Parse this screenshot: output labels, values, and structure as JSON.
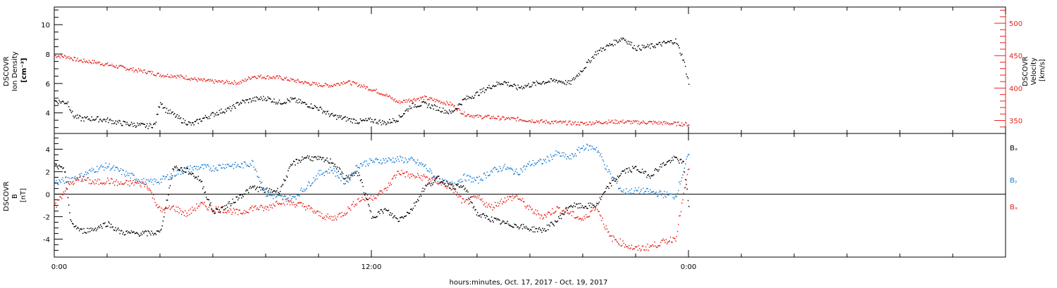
{
  "xlabel": "hours:minutes, Oct. 17, 2017 - Oct. 19, 2017",
  "x_tick_labels": [
    "0:00",
    "12:00",
    "0:00"
  ],
  "chart_data": [
    {
      "type": "scatter",
      "panel": "top",
      "title": "",
      "xlabel": "hours:minutes, Oct. 17, 2017 - Oct. 19, 2017",
      "xlim_hours": [
        0,
        36
      ],
      "x_tick_labels": [
        "0:00",
        "12:00",
        "0:00"
      ],
      "x_tick_hours": [
        0,
        12,
        24
      ],
      "left_axis": {
        "label_lines": [
          "DSCOVR",
          "Ion Density",
          "[cm⁻³]"
        ],
        "ylim": [
          2.6,
          11.2
        ],
        "ticks": [
          "4",
          "6",
          "8",
          "10"
        ],
        "color": "#000000"
      },
      "right_axis": {
        "label_lines": [
          "DSCOVR",
          "Velocity",
          "[km/s]"
        ],
        "ylim": [
          330,
          525
        ],
        "ticks": [
          "350",
          "400",
          "450",
          "500"
        ],
        "color": "#e8221c"
      },
      "series": [
        {
          "axis": "left",
          "color": "#000000",
          "x": [
            0.0,
            0.5,
            0.7,
            1.0,
            1.5,
            2.0,
            2.5,
            3.0,
            3.5,
            3.8,
            4.0,
            4.2,
            4.4,
            4.8,
            5.2,
            5.6,
            6.0,
            6.3,
            6.7,
            7.0,
            7.5,
            8.0,
            8.5,
            9.0,
            9.5,
            10.0,
            10.5,
            11.0,
            11.5,
            12.0,
            12.5,
            13.0,
            13.5,
            14.0,
            14.5,
            15.0,
            15.5,
            16.0,
            16.5,
            17.0,
            17.5,
            18.0,
            18.5,
            19.0,
            19.5,
            20.0,
            20.5,
            21.0,
            21.5,
            22.0,
            22.5,
            23.0,
            23.5,
            23.8,
            24.0
          ],
          "y": [
            4.8,
            4.7,
            3.8,
            3.6,
            3.6,
            3.5,
            3.3,
            3.2,
            3.1,
            3.2,
            4.8,
            4.2,
            4.0,
            3.5,
            3.2,
            3.6,
            3.9,
            4.1,
            4.3,
            4.7,
            4.9,
            5.0,
            4.7,
            4.9,
            4.6,
            4.3,
            3.8,
            3.6,
            3.4,
            3.5,
            3.3,
            3.6,
            4.5,
            4.6,
            4.3,
            4.0,
            4.9,
            5.3,
            5.8,
            6.1,
            5.7,
            5.9,
            6.1,
            6.2,
            6.0,
            7.0,
            8.1,
            8.6,
            9.1,
            8.4,
            8.5,
            8.7,
            8.9,
            7.6,
            6.0
          ]
        },
        {
          "axis": "right",
          "color": "#e8221c",
          "x": [
            0.0,
            0.5,
            0.7,
            1.0,
            1.5,
            2.0,
            2.5,
            3.0,
            3.5,
            3.8,
            4.0,
            4.5,
            5.0,
            5.5,
            6.0,
            6.5,
            7.0,
            7.5,
            8.0,
            8.5,
            9.0,
            9.5,
            10.0,
            10.5,
            11.0,
            11.5,
            12.0,
            12.5,
            13.0,
            13.5,
            14.0,
            14.5,
            15.0,
            15.5,
            16.0,
            16.5,
            17.0,
            17.5,
            18.0,
            18.5,
            19.0,
            19.5,
            20.0,
            20.5,
            21.0,
            21.5,
            22.0,
            22.5,
            23.0,
            23.5,
            24.0
          ],
          "y": [
            450,
            448,
            445,
            442,
            440,
            436,
            432,
            428,
            425,
            422,
            420,
            419,
            416,
            412,
            410,
            409,
            408,
            418,
            417,
            416,
            412,
            408,
            405,
            404,
            410,
            405,
            398,
            390,
            378,
            382,
            385,
            380,
            375,
            360,
            356,
            355,
            353,
            352,
            350,
            348,
            347,
            346,
            345,
            347,
            348,
            348,
            347,
            347,
            346,
            345,
            344
          ]
        }
      ]
    },
    {
      "type": "scatter",
      "panel": "bottom",
      "title": "",
      "xlim_hours": [
        0,
        36
      ],
      "x_tick_labels": [
        "0:00",
        "12:00",
        "0:00"
      ],
      "x_tick_hours": [
        0,
        12,
        24
      ],
      "ylabel_lines": [
        "DSCOVR",
        "B",
        "[nT]"
      ],
      "ylim": [
        -5.6,
        5.4
      ],
      "ticks": [
        "-4",
        "-2",
        "0",
        "2",
        "4"
      ],
      "zero_line": true,
      "legend_position": "right",
      "series": [
        {
          "name": "Bₓ",
          "color": "#000000",
          "x": [
            0.0,
            0.4,
            0.6,
            1.0,
            1.5,
            2.0,
            2.5,
            3.0,
            3.5,
            4.0,
            4.5,
            5.0,
            5.5,
            6.0,
            6.5,
            7.0,
            7.5,
            8.0,
            8.5,
            9.0,
            9.5,
            10.0,
            10.5,
            11.0,
            11.5,
            12.0,
            12.5,
            13.0,
            13.5,
            14.0,
            14.5,
            15.0,
            15.5,
            16.0,
            16.5,
            17.0,
            17.5,
            18.0,
            18.5,
            19.0,
            19.5,
            20.0,
            20.5,
            21.0,
            21.5,
            22.0,
            22.5,
            23.0,
            23.5,
            23.8,
            24.0
          ],
          "y": [
            2.6,
            2.0,
            -2.5,
            -3.3,
            -3.1,
            -2.6,
            -3.4,
            -3.5,
            -3.5,
            -3.4,
            2.4,
            2.1,
            1.3,
            -1.6,
            -1.1,
            -0.2,
            0.6,
            0.3,
            0.3,
            2.7,
            3.3,
            3.1,
            2.9,
            1.4,
            1.9,
            -2.0,
            -1.4,
            -2.3,
            -1.4,
            0.6,
            1.4,
            0.7,
            0.6,
            -1.8,
            -2.2,
            -2.6,
            -2.8,
            -3.1,
            -3.2,
            -2.4,
            -1.0,
            -1.1,
            -1.0,
            0.8,
            2.0,
            2.3,
            1.6,
            2.6,
            3.2,
            2.7,
            -1.0
          ]
        },
        {
          "name": "Bᵧ",
          "color": "#1a7fd4",
          "x": [
            0.0,
            0.5,
            1.0,
            1.5,
            2.0,
            2.5,
            3.0,
            3.5,
            4.0,
            4.5,
            5.0,
            5.5,
            6.0,
            6.5,
            7.0,
            7.5,
            8.0,
            8.5,
            9.0,
            9.5,
            10.0,
            10.5,
            11.0,
            11.5,
            12.0,
            12.5,
            13.0,
            13.5,
            14.0,
            14.5,
            15.0,
            15.5,
            16.0,
            16.5,
            17.0,
            17.5,
            18.0,
            18.5,
            19.0,
            19.5,
            20.0,
            20.5,
            21.0,
            21.5,
            22.0,
            22.5,
            23.0,
            23.5,
            24.0
          ],
          "y": [
            1.0,
            1.3,
            1.6,
            2.2,
            2.5,
            2.0,
            1.5,
            1.0,
            1.2,
            1.8,
            2.2,
            2.4,
            2.3,
            2.6,
            2.5,
            2.8,
            0.0,
            -0.3,
            -0.4,
            0.6,
            1.8,
            2.2,
            1.0,
            2.6,
            2.9,
            3.0,
            3.1,
            3.0,
            2.5,
            1.2,
            0.8,
            1.5,
            1.2,
            2.0,
            2.4,
            1.9,
            2.7,
            2.9,
            3.6,
            3.2,
            4.2,
            4.1,
            1.8,
            0.2,
            0.3,
            0.2,
            0.0,
            -0.2,
            3.6
          ]
        },
        {
          "name": "Bₓ",
          "color": "#e8221c",
          "x": [
            0.0,
            0.5,
            1.0,
            1.5,
            2.0,
            2.5,
            3.0,
            3.5,
            4.0,
            4.5,
            5.0,
            5.5,
            6.0,
            6.5,
            7.0,
            7.5,
            8.0,
            8.5,
            9.0,
            9.5,
            10.0,
            10.5,
            11.0,
            11.5,
            12.0,
            12.5,
            13.0,
            13.5,
            14.0,
            14.5,
            15.0,
            15.5,
            16.0,
            16.5,
            17.0,
            17.5,
            18.0,
            18.5,
            19.0,
            19.5,
            20.0,
            20.5,
            21.0,
            21.5,
            22.0,
            22.5,
            23.0,
            23.5,
            24.0
          ],
          "y": [
            -1.2,
            0.8,
            1.4,
            1.0,
            1.2,
            0.9,
            1.0,
            0.8,
            -1.5,
            -1.2,
            -1.8,
            -0.9,
            -1.3,
            -1.4,
            -1.7,
            -1.2,
            -1.3,
            -0.6,
            -0.8,
            -1.1,
            -1.8,
            -2.2,
            -1.6,
            -0.5,
            -0.3,
            0.3,
            2.0,
            1.6,
            1.5,
            1.1,
            0.6,
            -0.8,
            -0.3,
            -1.2,
            -0.5,
            -0.2,
            -1.4,
            -2.0,
            -1.3,
            -1.7,
            -2.3,
            -1.0,
            -3.8,
            -4.4,
            -4.9,
            -4.7,
            -4.3,
            -3.9,
            2.4
          ]
        }
      ]
    }
  ]
}
